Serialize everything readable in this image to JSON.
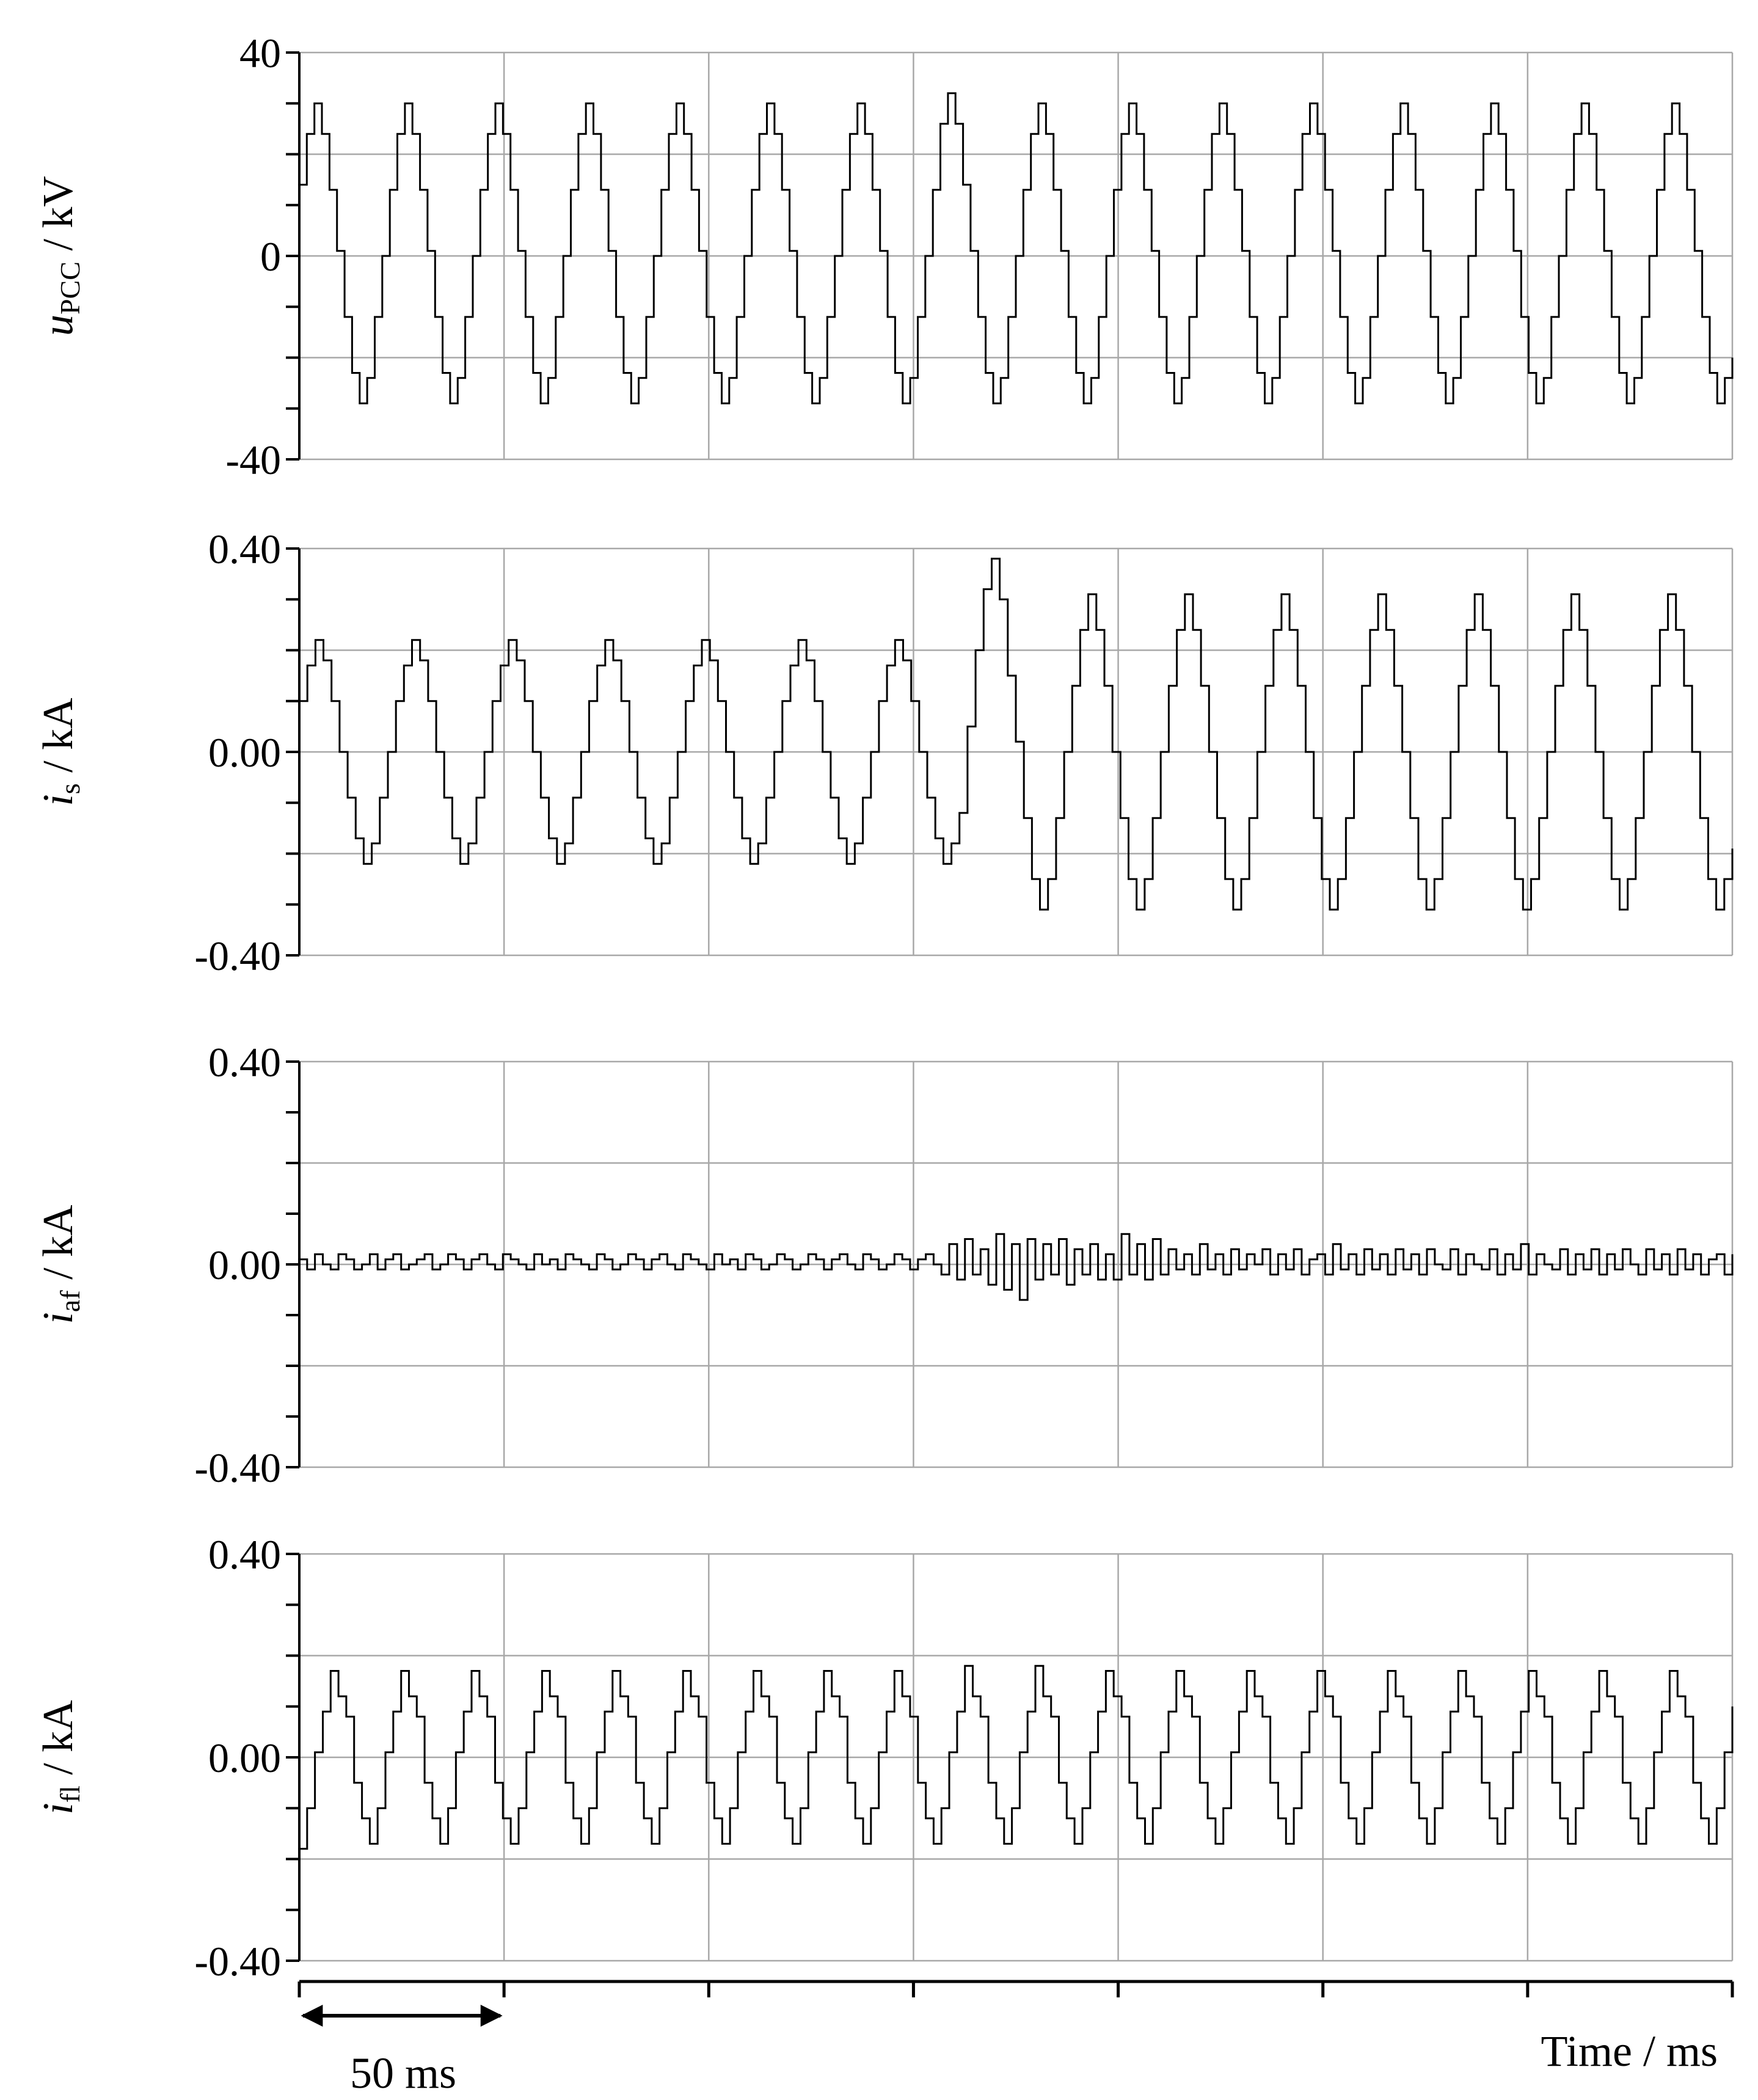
{
  "chart_data": [
    {
      "type": "line",
      "ylabel_symbol": "u",
      "ylabel_subscript": "PCC",
      "ylabel_unit": " / kV",
      "ylim": [
        -40,
        40
      ],
      "yticks": [
        "-40",
        "0",
        "40"
      ],
      "grid": true,
      "series": [
        {
          "name": "",
          "values": [
            14,
            24,
            30,
            24,
            13,
            1,
            -12,
            -23,
            -29,
            -24,
            -12,
            0,
            13,
            24,
            30,
            24,
            13,
            1,
            -12,
            -23,
            -29,
            -24,
            -12,
            0,
            13,
            24,
            30,
            24,
            13,
            1,
            -12,
            -23,
            -29,
            -24,
            -12,
            0,
            13,
            24,
            30,
            24,
            13,
            1,
            -12,
            -23,
            -29,
            -24,
            -12,
            0,
            13,
            24,
            30,
            24,
            13,
            1,
            -12,
            -23,
            -29,
            -24,
            -12,
            0,
            13,
            24,
            30,
            24,
            13,
            1,
            -12,
            -23,
            -29,
            -24,
            -12,
            0,
            13,
            24,
            30,
            24,
            13,
            1,
            -12,
            -23,
            -29,
            -24,
            -12,
            0,
            13,
            26,
            32,
            26,
            14,
            1,
            -12,
            -23,
            -29,
            -24,
            -12,
            0,
            13,
            24,
            30,
            24,
            13,
            1,
            -12,
            -23,
            -29,
            -24,
            -12,
            0,
            13,
            24,
            30,
            24,
            13,
            1,
            -12,
            -23,
            -29,
            -24,
            -12,
            0,
            13,
            24,
            30,
            24,
            13,
            1,
            -12,
            -23,
            -29,
            -24,
            -12,
            0,
            13,
            24,
            30,
            24,
            13,
            1,
            -12,
            -23,
            -29,
            -24,
            -12,
            0,
            13,
            24,
            30,
            24,
            13,
            1,
            -12,
            -23,
            -29,
            -24,
            -12,
            0,
            13,
            24,
            30,
            24,
            13,
            1,
            -12,
            -23,
            -29,
            -24,
            -12,
            0,
            13,
            24,
            30,
            24,
            13,
            1,
            -12,
            -23,
            -29,
            -24,
            -12,
            0,
            13,
            24,
            30,
            24,
            13,
            1,
            -12,
            -23,
            -29,
            -24,
            -20
          ]
        }
      ]
    },
    {
      "type": "line",
      "ylabel_symbol": "i",
      "ylabel_subscript": "s",
      "ylabel_unit": " / kA",
      "ylim": [
        -0.4,
        0.4
      ],
      "yticks": [
        "-0.40",
        "0.00",
        "0.40"
      ],
      "grid": true,
      "series": [
        {
          "name": "",
          "values": [
            0.1,
            0.17,
            0.22,
            0.18,
            0.1,
            0.0,
            -0.09,
            -0.17,
            -0.22,
            -0.18,
            -0.09,
            0.0,
            0.1,
            0.17,
            0.22,
            0.18,
            0.1,
            0.0,
            -0.09,
            -0.17,
            -0.22,
            -0.18,
            -0.09,
            0.0,
            0.1,
            0.17,
            0.22,
            0.18,
            0.1,
            0.0,
            -0.09,
            -0.17,
            -0.22,
            -0.18,
            -0.09,
            0.0,
            0.1,
            0.17,
            0.22,
            0.18,
            0.1,
            0.0,
            -0.09,
            -0.17,
            -0.22,
            -0.18,
            -0.09,
            0.0,
            0.1,
            0.17,
            0.22,
            0.18,
            0.1,
            0.0,
            -0.09,
            -0.17,
            -0.22,
            -0.18,
            -0.09,
            0.0,
            0.1,
            0.17,
            0.22,
            0.18,
            0.1,
            0.0,
            -0.09,
            -0.17,
            -0.22,
            -0.18,
            -0.09,
            0.0,
            0.1,
            0.17,
            0.22,
            0.18,
            0.1,
            0.0,
            -0.09,
            -0.17,
            -0.22,
            -0.18,
            -0.12,
            0.05,
            0.2,
            0.32,
            0.38,
            0.3,
            0.15,
            0.02,
            -0.13,
            -0.25,
            -0.31,
            -0.25,
            -0.13,
            0.0,
            0.13,
            0.24,
            0.31,
            0.24,
            0.13,
            0.0,
            -0.13,
            -0.25,
            -0.31,
            -0.25,
            -0.13,
            0.0,
            0.13,
            0.24,
            0.31,
            0.24,
            0.13,
            0.0,
            -0.13,
            -0.25,
            -0.31,
            -0.25,
            -0.13,
            0.0,
            0.13,
            0.24,
            0.31,
            0.24,
            0.13,
            0.0,
            -0.13,
            -0.25,
            -0.31,
            -0.25,
            -0.13,
            0.0,
            0.13,
            0.24,
            0.31,
            0.24,
            0.13,
            0.0,
            -0.13,
            -0.25,
            -0.31,
            -0.25,
            -0.13,
            0.0,
            0.13,
            0.24,
            0.31,
            0.24,
            0.13,
            0.0,
            -0.13,
            -0.25,
            -0.31,
            -0.25,
            -0.13,
            0.0,
            0.13,
            0.24,
            0.31,
            0.24,
            0.13,
            0.0,
            -0.13,
            -0.25,
            -0.31,
            -0.25,
            -0.13,
            0.0,
            0.13,
            0.24,
            0.31,
            0.24,
            0.13,
            0.0,
            -0.13,
            -0.25,
            -0.31,
            -0.25,
            -0.19
          ]
        }
      ]
    },
    {
      "type": "line",
      "ylabel_symbol": "i",
      "ylabel_subscript": "af",
      "ylabel_unit": " / kA",
      "ylim": [
        -0.4,
        0.4
      ],
      "yticks": [
        "-0.40",
        "0.00",
        "0.40"
      ],
      "grid": true,
      "series": [
        {
          "name": "",
          "values": [
            0.01,
            -0.01,
            0.02,
            0.0,
            -0.01,
            0.02,
            0.01,
            -0.01,
            0.0,
            0.02,
            -0.01,
            0.01,
            0.02,
            -0.01,
            0.0,
            0.01,
            0.02,
            -0.01,
            0.0,
            0.02,
            0.01,
            -0.01,
            0.01,
            0.02,
            0.0,
            -0.01,
            0.02,
            0.01,
            0.0,
            -0.01,
            0.02,
            0.0,
            0.01,
            -0.01,
            0.02,
            0.01,
            0.0,
            -0.01,
            0.02,
            0.01,
            -0.01,
            0.0,
            0.02,
            0.01,
            -0.01,
            0.01,
            0.02,
            0.0,
            -0.01,
            0.02,
            0.01,
            0.0,
            -0.01,
            0.02,
            0.0,
            0.01,
            -0.01,
            0.02,
            0.01,
            -0.01,
            0.0,
            0.02,
            0.01,
            -0.01,
            0.0,
            0.02,
            0.01,
            -0.01,
            0.01,
            0.02,
            0.0,
            -0.01,
            0.02,
            0.01,
            -0.01,
            0.0,
            0.02,
            0.01,
            -0.01,
            0.01,
            0.02,
            0.0,
            -0.02,
            0.04,
            -0.03,
            0.05,
            -0.02,
            0.03,
            -0.04,
            0.06,
            -0.05,
            0.04,
            -0.07,
            0.05,
            -0.03,
            0.04,
            -0.02,
            0.05,
            -0.04,
            0.03,
            -0.02,
            0.04,
            -0.03,
            0.02,
            -0.03,
            0.06,
            -0.02,
            0.04,
            -0.03,
            0.05,
            -0.02,
            0.03,
            -0.01,
            0.02,
            -0.02,
            0.04,
            -0.01,
            0.02,
            -0.02,
            0.03,
            -0.01,
            0.02,
            0.0,
            0.03,
            -0.02,
            0.02,
            -0.01,
            0.03,
            -0.02,
            0.01,
            0.02,
            -0.02,
            0.04,
            -0.01,
            0.02,
            -0.02,
            0.03,
            -0.01,
            0.02,
            -0.02,
            0.03,
            -0.01,
            0.02,
            -0.02,
            0.03,
            0.0,
            -0.01,
            0.03,
            -0.02,
            0.02,
            0.0,
            -0.01,
            0.03,
            -0.02,
            0.02,
            -0.01,
            0.04,
            -0.02,
            0.02,
            0.0,
            -0.01,
            0.03,
            -0.02,
            0.02,
            -0.01,
            0.03,
            -0.02,
            0.02,
            -0.01,
            0.03,
            0.0,
            -0.02,
            0.03,
            -0.01,
            0.02,
            -0.02,
            0.03,
            -0.01,
            0.02,
            -0.02,
            0.01,
            0.02,
            -0.02,
            0.02
          ]
        }
      ]
    },
    {
      "type": "line",
      "ylabel_symbol": "i",
      "ylabel_subscript": "fl",
      "ylabel_unit": " / kA",
      "ylim": [
        -0.4,
        0.4
      ],
      "yticks": [
        "-0.40",
        "0.00",
        "0.40"
      ],
      "grid": true,
      "series": [
        {
          "name": "",
          "values": [
            -0.18,
            -0.1,
            0.01,
            0.09,
            0.17,
            0.12,
            0.08,
            -0.05,
            -0.12,
            -0.17,
            -0.1,
            0.01,
            0.09,
            0.17,
            0.12,
            0.08,
            -0.05,
            -0.12,
            -0.17,
            -0.1,
            0.01,
            0.09,
            0.17,
            0.12,
            0.08,
            -0.05,
            -0.12,
            -0.17,
            -0.1,
            0.01,
            0.09,
            0.17,
            0.12,
            0.08,
            -0.05,
            -0.12,
            -0.17,
            -0.1,
            0.01,
            0.09,
            0.17,
            0.12,
            0.08,
            -0.05,
            -0.12,
            -0.17,
            -0.1,
            0.01,
            0.09,
            0.17,
            0.12,
            0.08,
            -0.05,
            -0.12,
            -0.17,
            -0.1,
            0.01,
            0.09,
            0.17,
            0.12,
            0.08,
            -0.05,
            -0.12,
            -0.17,
            -0.1,
            0.01,
            0.09,
            0.17,
            0.12,
            0.08,
            -0.05,
            -0.12,
            -0.17,
            -0.1,
            0.01,
            0.09,
            0.17,
            0.12,
            0.08,
            -0.05,
            -0.12,
            -0.17,
            -0.1,
            0.01,
            0.09,
            0.18,
            0.12,
            0.08,
            -0.05,
            -0.12,
            -0.17,
            -0.1,
            0.01,
            0.09,
            0.18,
            0.12,
            0.08,
            -0.05,
            -0.12,
            -0.17,
            -0.1,
            0.01,
            0.09,
            0.17,
            0.12,
            0.08,
            -0.05,
            -0.12,
            -0.17,
            -0.1,
            0.01,
            0.09,
            0.17,
            0.12,
            0.08,
            -0.05,
            -0.12,
            -0.17,
            -0.1,
            0.01,
            0.09,
            0.17,
            0.12,
            0.08,
            -0.05,
            -0.12,
            -0.17,
            -0.1,
            0.01,
            0.09,
            0.17,
            0.12,
            0.08,
            -0.05,
            -0.12,
            -0.17,
            -0.1,
            0.01,
            0.09,
            0.17,
            0.12,
            0.08,
            -0.05,
            -0.12,
            -0.17,
            -0.1,
            0.01,
            0.09,
            0.17,
            0.12,
            0.08,
            -0.05,
            -0.12,
            -0.17,
            -0.1,
            0.01,
            0.09,
            0.17,
            0.12,
            0.08,
            -0.05,
            -0.12,
            -0.17,
            -0.1,
            0.01,
            0.09,
            0.17,
            0.12,
            0.08,
            -0.05,
            -0.12,
            -0.17,
            -0.1,
            0.01,
            0.09,
            0.17,
            0.12,
            0.08,
            -0.05,
            -0.12,
            -0.17,
            -0.1,
            0.01,
            0.1
          ]
        }
      ]
    }
  ],
  "time_axis": {
    "label": "Time / ms",
    "scale_bar_label": "50 ms",
    "divisions": 7
  }
}
